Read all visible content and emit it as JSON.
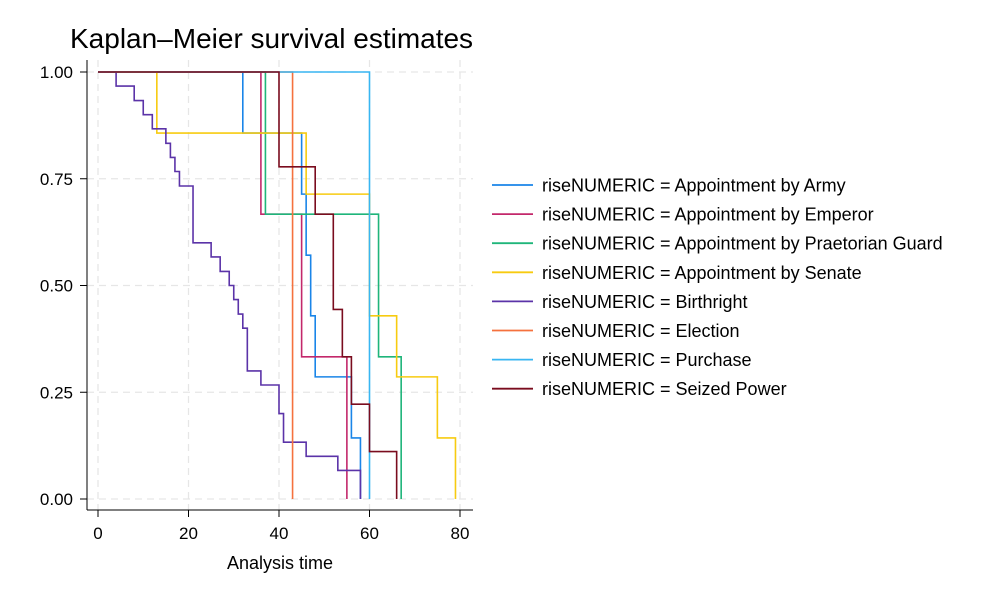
{
  "chart_data": {
    "type": "line",
    "title": "Kaplan–Meier survival estimates",
    "xlabel": "Analysis time",
    "ylabel": "",
    "xlim": [
      0,
      80
    ],
    "ylim": [
      0,
      1
    ],
    "xticks": [
      0,
      20,
      40,
      60,
      80
    ],
    "xtick_labels": [
      "0",
      "20",
      "40",
      "60",
      "80"
    ],
    "yticks": [
      0,
      0.25,
      0.5,
      0.75,
      1
    ],
    "ytick_labels": [
      "0.00",
      "0.25",
      "0.50",
      "0.75",
      "1.00"
    ],
    "grid": true,
    "legend_position": "right",
    "series": [
      {
        "name": "riseNUMERIC = Appointment by Army",
        "color": "#1a85e8",
        "x": [
          0,
          32,
          45,
          46,
          47,
          48,
          56,
          58
        ],
        "y": [
          1,
          0.857,
          0.714,
          0.571,
          0.429,
          0.286,
          0.143,
          0
        ]
      },
      {
        "name": "riseNUMERIC = Appointment by Emperor",
        "color": "#c3286b",
        "x": [
          0,
          36,
          45,
          55
        ],
        "y": [
          1,
          0.667,
          0.333,
          0
        ]
      },
      {
        "name": "riseNUMERIC = Appointment by Praetorian Guard",
        "color": "#1fb57a",
        "x": [
          0,
          37,
          62,
          67
        ],
        "y": [
          1,
          0.667,
          0.333,
          0
        ]
      },
      {
        "name": "riseNUMERIC = Appointment by Senate",
        "color": "#f7cb10",
        "x": [
          0,
          13,
          46,
          60,
          66,
          75,
          79
        ],
        "y": [
          1,
          0.857,
          0.714,
          0.429,
          0.286,
          0.143,
          0
        ]
      },
      {
        "name": "riseNUMERIC = Birthright",
        "color": "#5b33a8",
        "x": [
          0,
          4,
          8,
          10,
          12,
          15,
          16,
          17,
          18,
          21,
          25,
          27,
          29,
          30,
          31,
          32,
          33,
          36,
          40,
          41,
          46,
          53,
          58
        ],
        "y": [
          1,
          0.967,
          0.933,
          0.9,
          0.867,
          0.833,
          0.8,
          0.767,
          0.733,
          0.6,
          0.567,
          0.533,
          0.5,
          0.467,
          0.433,
          0.4,
          0.3,
          0.267,
          0.2,
          0.133,
          0.1,
          0.067,
          0
        ]
      },
      {
        "name": "riseNUMERIC = Election",
        "color": "#f5713e",
        "x": [
          0,
          43
        ],
        "y": [
          1,
          0
        ]
      },
      {
        "name": "riseNUMERIC = Purchase",
        "color": "#38b6f2",
        "x": [
          0,
          60
        ],
        "y": [
          1,
          0
        ]
      },
      {
        "name": "riseNUMERIC = Seized Power",
        "color": "#7a0c1e",
        "x": [
          0,
          40,
          48,
          52,
          54,
          56,
          60,
          66
        ],
        "y": [
          1,
          0.778,
          0.667,
          0.444,
          0.333,
          0.222,
          0.111,
          0
        ]
      }
    ]
  }
}
